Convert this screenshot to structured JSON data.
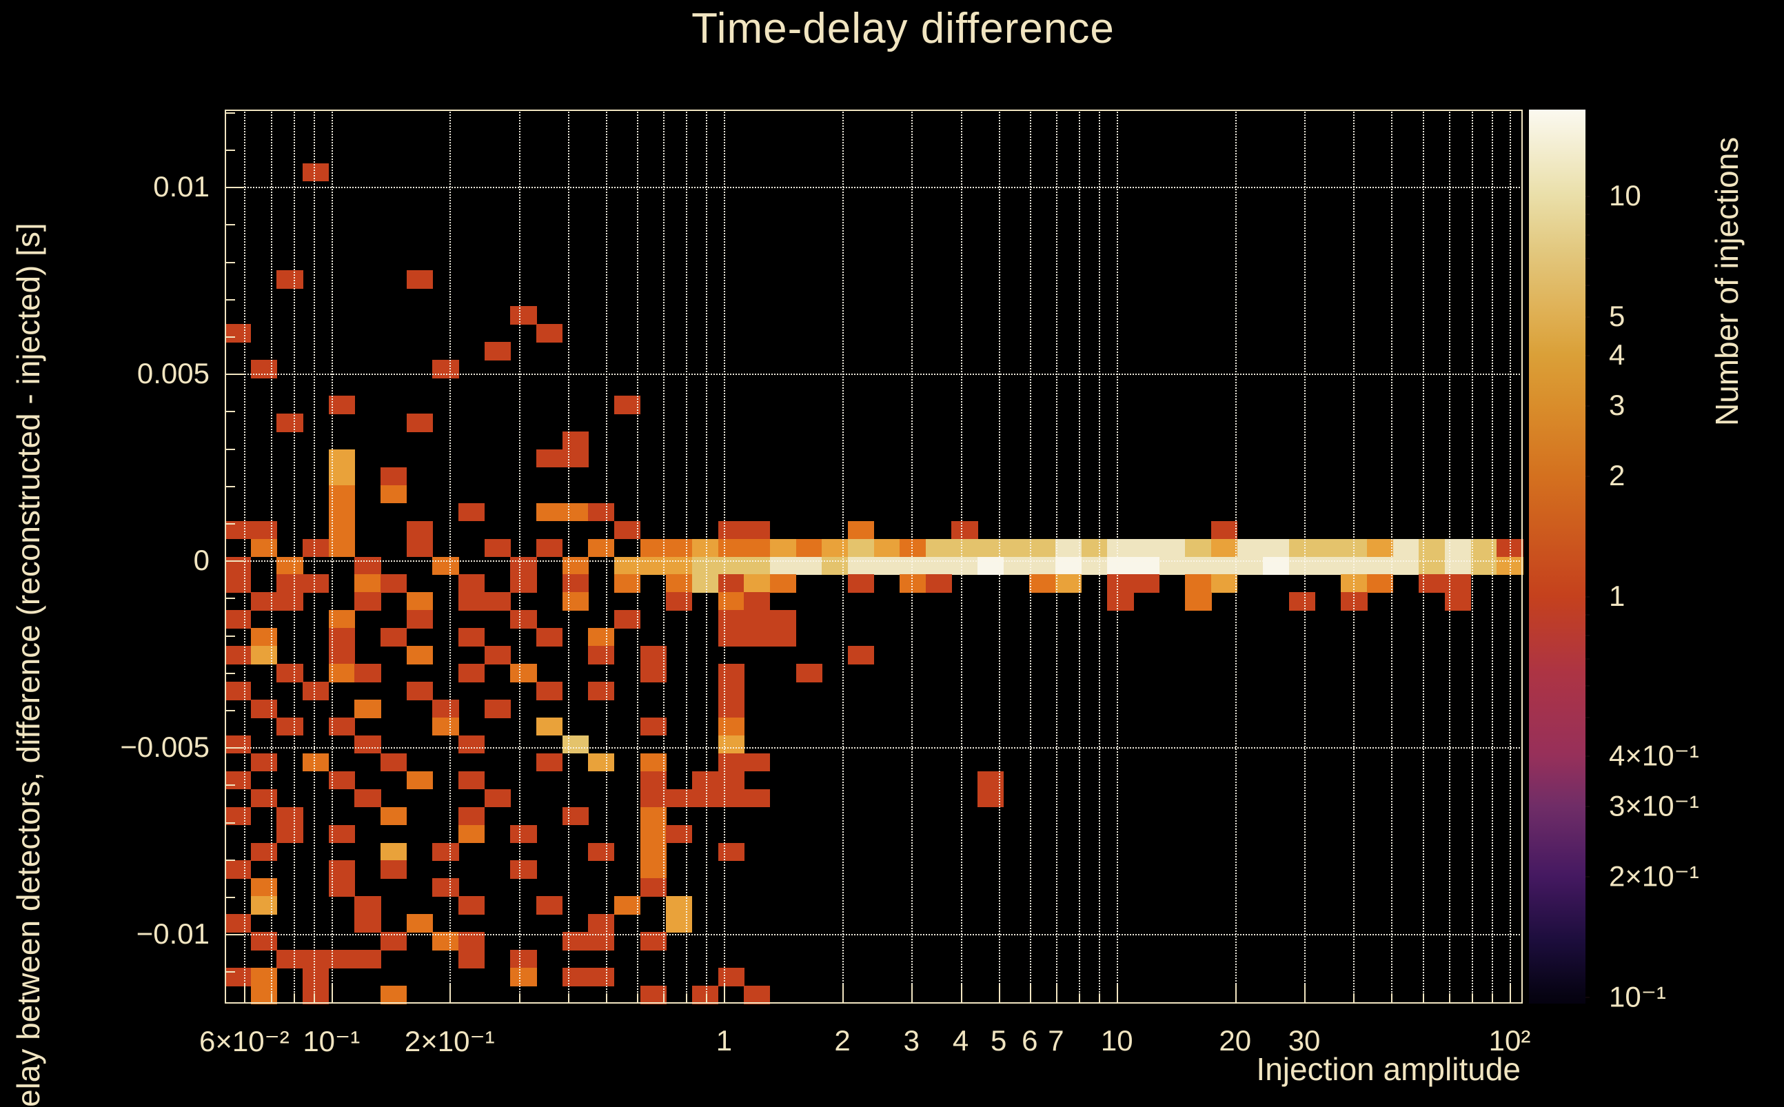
{
  "chart_data": {
    "type": "heatmap",
    "title": "Time-delay difference",
    "xlabel": "Injection amplitude",
    "ylabel_visible": "elay between detectors, difference (reconstructed - injected) [s]",
    "colorbar_label": "Number of injections",
    "x_axis": {
      "scale": "log",
      "min": 0.0535,
      "max": 108,
      "tick_labels": [
        {
          "value": 0.06,
          "text": "6×10⁻²"
        },
        {
          "value": 0.1,
          "text": "10⁻¹"
        },
        {
          "value": 0.2,
          "text": "2×10⁻¹"
        },
        {
          "value": 1,
          "text": "1"
        },
        {
          "value": 2,
          "text": "2"
        },
        {
          "value": 3,
          "text": "3"
        },
        {
          "value": 4,
          "text": "4"
        },
        {
          "value": 5,
          "text": "5"
        },
        {
          "value": 6,
          "text": "6"
        },
        {
          "value": 7,
          "text": "7"
        },
        {
          "value": 10,
          "text": "10"
        },
        {
          "value": 20,
          "text": "20"
        },
        {
          "value": 30,
          "text": "30"
        },
        {
          "value": 100,
          "text": "10²"
        }
      ],
      "major_ticks": [
        0.06,
        0.1,
        0.2,
        1,
        2,
        3,
        4,
        5,
        6,
        7,
        10,
        20,
        30,
        100
      ],
      "minor_ticks": [
        0.07,
        0.08,
        0.09,
        0.3,
        0.4,
        0.5,
        0.6,
        0.7,
        0.8,
        0.9,
        8,
        9,
        40,
        50,
        60,
        70,
        80,
        90
      ],
      "gridlines": [
        0.06,
        0.07,
        0.08,
        0.09,
        0.1,
        0.2,
        0.3,
        0.4,
        0.5,
        0.6,
        0.7,
        0.8,
        0.9,
        1,
        2,
        3,
        4,
        5,
        6,
        7,
        8,
        9,
        10,
        20,
        30,
        40,
        50,
        60,
        70,
        80,
        90,
        100
      ],
      "grid_on": true
    },
    "y_axis": {
      "scale": "linear",
      "min": -0.01186,
      "max": 0.01207,
      "tick_labels": [
        {
          "value": 0.01,
          "text": "0.01"
        },
        {
          "value": 0.005,
          "text": "0.005"
        },
        {
          "value": 0,
          "text": "0"
        },
        {
          "value": -0.005,
          "text": "−0.005"
        },
        {
          "value": -0.01,
          "text": "−0.01"
        }
      ],
      "major_ticks": [
        0.01,
        0.005,
        0,
        -0.005,
        -0.01
      ],
      "minor_tick_step": 0.001,
      "gridlines": [
        0.01,
        0.005,
        0,
        -0.005,
        -0.01
      ],
      "grid_on": true
    },
    "colorbar": {
      "scale": "log",
      "min": 0.096,
      "max": 16.4,
      "tick_labels": [
        {
          "value": 10,
          "text": "10"
        },
        {
          "value": 5,
          "text": "5"
        },
        {
          "value": 4,
          "text": "4"
        },
        {
          "value": 3,
          "text": "3"
        },
        {
          "value": 2,
          "text": "2"
        },
        {
          "value": 1,
          "text": "1"
        },
        {
          "value": 0.4,
          "text": "4×10⁻¹"
        },
        {
          "value": 0.3,
          "text": "3×10⁻¹"
        },
        {
          "value": 0.2,
          "text": "2×10⁻¹"
        },
        {
          "value": 0.1,
          "text": "10⁻¹"
        }
      ],
      "minor_ticks": [
        9,
        8,
        7,
        6,
        0.9,
        0.8,
        0.7,
        0.6,
        0.5
      ],
      "gradient_stops": [
        {
          "pos": 0.0,
          "color": "#fbf9f0"
        },
        {
          "pos": 0.096,
          "color": "#eadfa9"
        },
        {
          "pos": 0.16,
          "color": "#e2c77d"
        },
        {
          "pos": 0.231,
          "color": "#dfaf52"
        },
        {
          "pos": 0.274,
          "color": "#daa038"
        },
        {
          "pos": 0.331,
          "color": "#d98d2b"
        },
        {
          "pos": 0.409,
          "color": "#d4711f"
        },
        {
          "pos": 0.544,
          "color": "#c5411d"
        },
        {
          "pos": 0.63,
          "color": "#ad3444"
        },
        {
          "pos": 0.722,
          "color": "#97305a"
        },
        {
          "pos": 0.779,
          "color": "#702d67"
        },
        {
          "pos": 0.857,
          "color": "#451961"
        },
        {
          "pos": 0.93,
          "color": "#1c0d3c"
        },
        {
          "pos": 0.992,
          "color": "#060312"
        },
        {
          "pos": 1.0,
          "color": "#050210"
        }
      ]
    },
    "heatmap_grid": {
      "cols": 50,
      "rows": 50,
      "note": "row 0 = top (y=+0.0121), row 49 = bottom (y=-0.0119); char '.'=empty bin, digits = color level",
      "level_colors": {
        "1": "#c5411d",
        "2": "#e2731c",
        "3": "#e9a23a",
        "4": "#e4c36c",
        "5": "#efe5c0",
        "6": "#f9f6ea"
      },
      "level_injection_counts": {
        "1": 1,
        "2": 2,
        "3": 3,
        "4": 5,
        "5": 9,
        "6": 14
      },
      "rows_data": [
        "..................................................",
        "..................................................",
        "..................................................",
        "...1..............................................",
        "..................................................",
        "..................................................",
        "..................................................",
        "..................................................",
        "..................................................",
        "..1....1..........................................",
        "..................................................",
        "...........1.....................................",
        "1...........1....................................",
        "..........1.......................................",
        ".1......1.........................................",
        "..................................................",
        "....1..........1..................................",
        "..1....1..........................................",
        ".............1....................................",
        "....3.......11....................................",
        "....3.1...........................................",
        "....2.2...........................................",
        "....2....1..221...................................",
        "11..2..1.......1...11...2...1.........1.........",
        ".2.12..1..1.1.2.22322323432444445455543554443545 41",
        "1.2..1..2..1.2.333444554555556556566555565555545 43",
        "1.11.21..1.1.1.2.24132..1.21...23.11.23....32.11..",
        ".11..1.2.11..2...1.21.............1..2...1.1...1..",
        "1...2..1...1...1...111............................",
        ".2..1.1..1..1.2....111............................",
        "13..1..2..1...1.1.......1.........................",
        "..1.21...1.2....1..1..1...........................",
        "1..1...1....1.1....1..............................",
        ".1...2..1.1........1..............................",
        "..1.1...2...3...1..2..............................",
        "1....1...1...4.....3..............................",
        ".1.2..1.....1.3.2..11.............................",
        "1...1..2.1......1.11.........1....................",
        ".1...1....1.....11111........1....................",
        "1.1...2..1...1..2.................................",
        "..1.1....2.1....21................................",
        ".1....3.1.....1.2..1..............................",
        "1...1.1....1....2.................................",
        ".2..1...1.......1.................................",
        ".3...1...1..1..2.3................................",
        "1....1.2......1..3................................",
        ".1....1.21...11.1.................................",
        "..1111...1.1......................................",
        "12.1.......2.11....1..............................",
        ".2.1..2.........1.1.1............................."
      ]
    }
  },
  "ui": {
    "background_color": "#000000",
    "text_color": "#f1e5c1",
    "grid_color": "#faf5e8"
  }
}
